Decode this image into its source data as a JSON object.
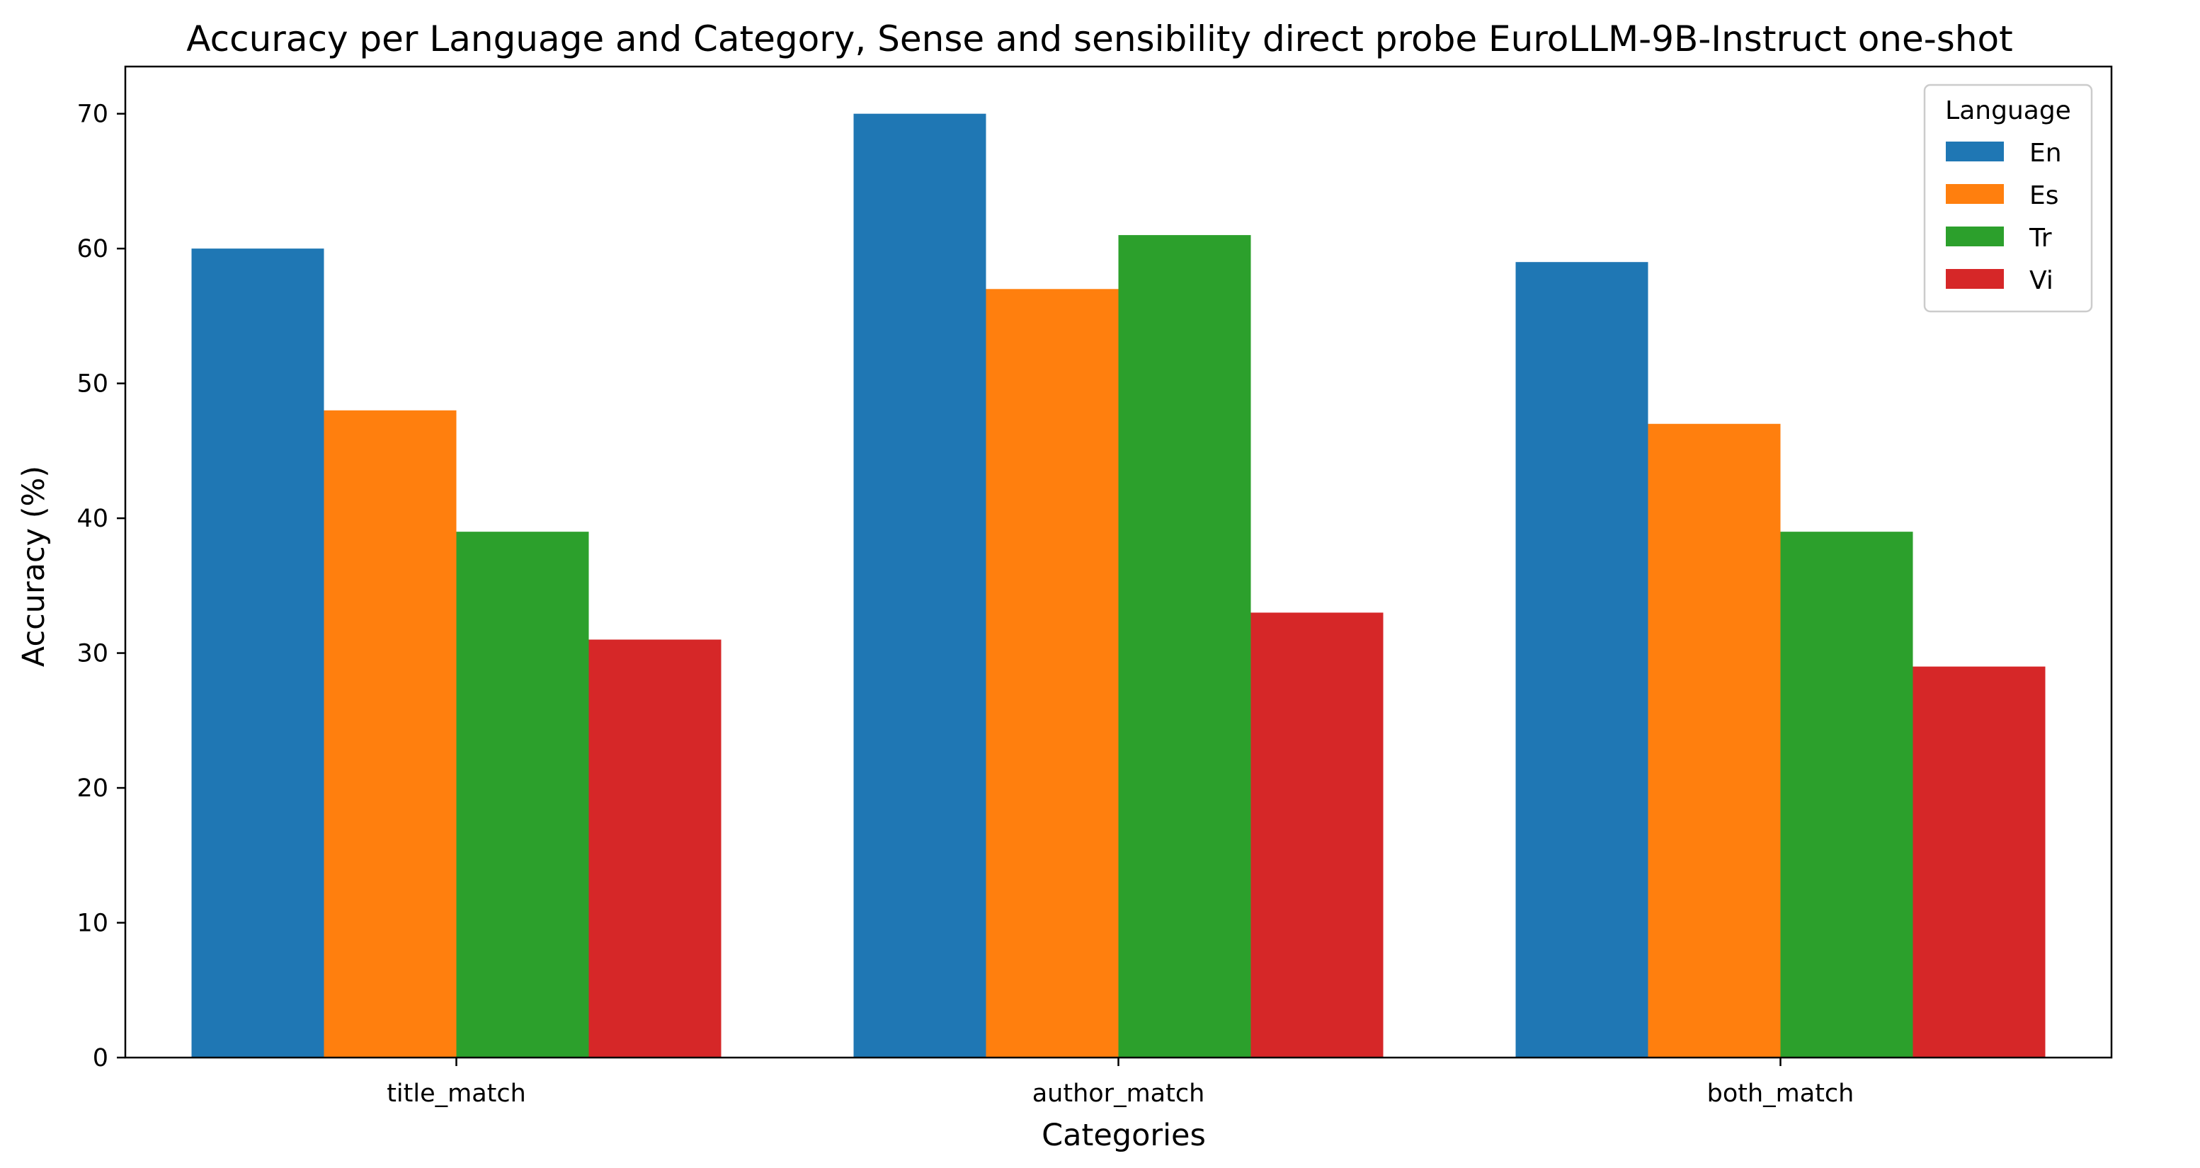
{
  "chart_data": {
    "type": "bar",
    "title": "Accuracy per Language and Category, Sense and sensibility direct probe EuroLLM-9B-Instruct one-shot",
    "xlabel": "Categories",
    "ylabel": "Accuracy (%)",
    "categories": [
      "title_match",
      "author_match",
      "both_match"
    ],
    "ylim": [
      0,
      73.5
    ],
    "yticks": [
      0,
      10,
      20,
      30,
      40,
      50,
      60,
      70
    ],
    "legend": {
      "title": "Language",
      "placement": "top-right"
    },
    "grid": false,
    "series": [
      {
        "name": "En",
        "color": "#1f77b4",
        "values": [
          60,
          70,
          59
        ]
      },
      {
        "name": "Es",
        "color": "#ff7f0e",
        "values": [
          48,
          57,
          47
        ]
      },
      {
        "name": "Tr",
        "color": "#2ca02c",
        "values": [
          39,
          61,
          39
        ]
      },
      {
        "name": "Vi",
        "color": "#d62728",
        "values": [
          31,
          33,
          29
        ]
      }
    ]
  }
}
